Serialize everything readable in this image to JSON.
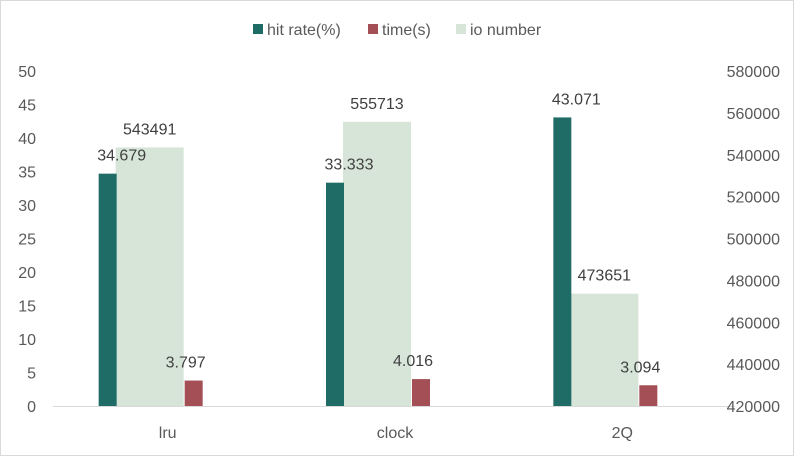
{
  "chart_data": {
    "type": "bar",
    "categories": [
      "lru",
      "clock",
      "2Q"
    ],
    "series": [
      {
        "name": "hit rate(%)",
        "axis": "left",
        "color": "#1f6b66",
        "values": [
          34.679,
          33.333,
          43.071
        ],
        "labels": [
          "34.679",
          "33.333",
          "43.071"
        ]
      },
      {
        "name": "time(s)",
        "axis": "left",
        "color": "#a34f55",
        "values": [
          3.797,
          4.016,
          3.094
        ],
        "labels": [
          "3.797",
          "4.016",
          "3.094"
        ]
      },
      {
        "name": "io number",
        "axis": "right",
        "color": "#d6e5d7",
        "values": [
          543491,
          555713,
          473651
        ],
        "labels": [
          "543491",
          "555713",
          "473651"
        ]
      }
    ],
    "y_left": {
      "min": 0,
      "max": 50,
      "ticks": [
        "0",
        "5",
        "10",
        "15",
        "20",
        "25",
        "30",
        "35",
        "40",
        "45",
        "50"
      ]
    },
    "y_right": {
      "min": 420000,
      "max": 580000,
      "ticks": [
        "420000",
        "440000",
        "460000",
        "480000",
        "500000",
        "520000",
        "540000",
        "560000",
        "580000"
      ]
    },
    "legend_position": "top",
    "grid": false
  }
}
